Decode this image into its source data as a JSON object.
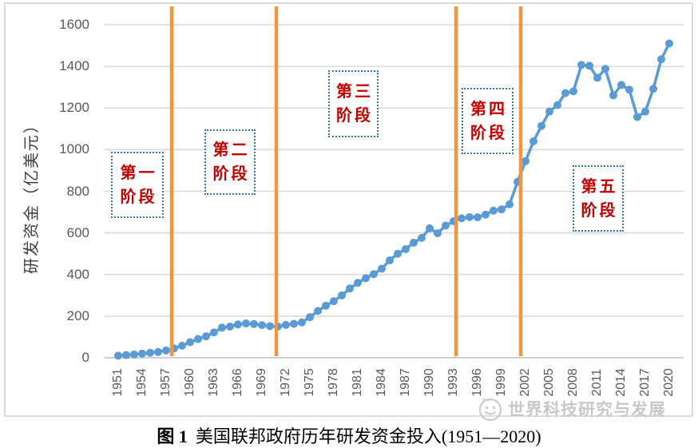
{
  "figure": {
    "caption_prefix": "图 1",
    "caption_text": "美国联邦政府历年研发资金投入(1951—2020)"
  },
  "watermark": {
    "logo": "smiley-globe-logo",
    "text": "世界科技研究与发展"
  },
  "chart_data": {
    "type": "line",
    "title": "",
    "xlabel": "",
    "ylabel": "研发资金（亿美元）",
    "ylim": [
      0,
      1600
    ],
    "yticks": [
      0,
      200,
      400,
      600,
      800,
      1000,
      1200,
      1400,
      1600
    ],
    "xtick_labels": [
      "1951",
      "1954",
      "1957",
      "1960",
      "1963",
      "1966",
      "1969",
      "1972",
      "1975",
      "1978",
      "1981",
      "1984",
      "1987",
      "1990",
      "1993",
      "1996",
      "1999",
      "2002",
      "2005",
      "2008",
      "2011",
      "2014",
      "2017",
      "2020"
    ],
    "grid": true,
    "legend": "none",
    "series": [
      {
        "name": "美国联邦政府研发资金",
        "color": "#5B9BD5",
        "marker": "circle",
        "x": [
          1951,
          1952,
          1953,
          1954,
          1955,
          1956,
          1957,
          1958,
          1959,
          1960,
          1961,
          1962,
          1963,
          1964,
          1965,
          1966,
          1967,
          1968,
          1969,
          1970,
          1971,
          1972,
          1973,
          1974,
          1975,
          1976,
          1977,
          1978,
          1979,
          1980,
          1981,
          1982,
          1983,
          1984,
          1985,
          1986,
          1987,
          1988,
          1989,
          1990,
          1991,
          1992,
          1993,
          1994,
          1995,
          1996,
          1997,
          1998,
          1999,
          2000,
          2001,
          2002,
          2003,
          2004,
          2005,
          2006,
          2007,
          2008,
          2009,
          2010,
          2011,
          2012,
          2013,
          2014,
          2015,
          2016,
          2017,
          2018,
          2019,
          2020
        ],
        "values": [
          10,
          13,
          16,
          20,
          24,
          28,
          35,
          45,
          58,
          75,
          90,
          103,
          122,
          145,
          150,
          160,
          165,
          162,
          157,
          152,
          150,
          158,
          163,
          170,
          195,
          225,
          250,
          272,
          300,
          333,
          360,
          382,
          402,
          428,
          468,
          500,
          522,
          553,
          576,
          622,
          598,
          635,
          656,
          670,
          676,
          675,
          688,
          707,
          713,
          737,
          845,
          945,
          1040,
          1114,
          1183,
          1214,
          1272,
          1280,
          1407,
          1403,
          1345,
          1388,
          1261,
          1311,
          1288,
          1157,
          1183,
          1292,
          1434,
          1510
        ]
      }
    ],
    "stage_dividers": {
      "color": "#F09540",
      "x_years": [
        1957.7,
        1970.8,
        1993.3,
        2001.4
      ]
    },
    "stage_labels": [
      {
        "label": "第一阶段",
        "line1": "第一",
        "line2": "阶段"
      },
      {
        "label": "第二阶段",
        "line1": "第二",
        "line2": "阶段"
      },
      {
        "label": "第三阶段",
        "line1": "第三",
        "line2": "阶段"
      },
      {
        "label": "第四阶段",
        "line1": "第四",
        "line2": "阶段"
      },
      {
        "label": "第五阶段",
        "line1": "第五",
        "line2": "阶段"
      }
    ]
  },
  "colors": {
    "line_blue": "#5B9BD5",
    "divider_orange": "#F09540",
    "gridline": "#D9D9D9",
    "axis_line": "#C9C9C9",
    "axis_text": "#595959",
    "y_title_text": "#404040",
    "stage_text_red": "#C00000",
    "stage_border_blue": "#2E74B5",
    "watermark_gray": "#C8C8C8",
    "frame_border": "#DCDCDC"
  }
}
